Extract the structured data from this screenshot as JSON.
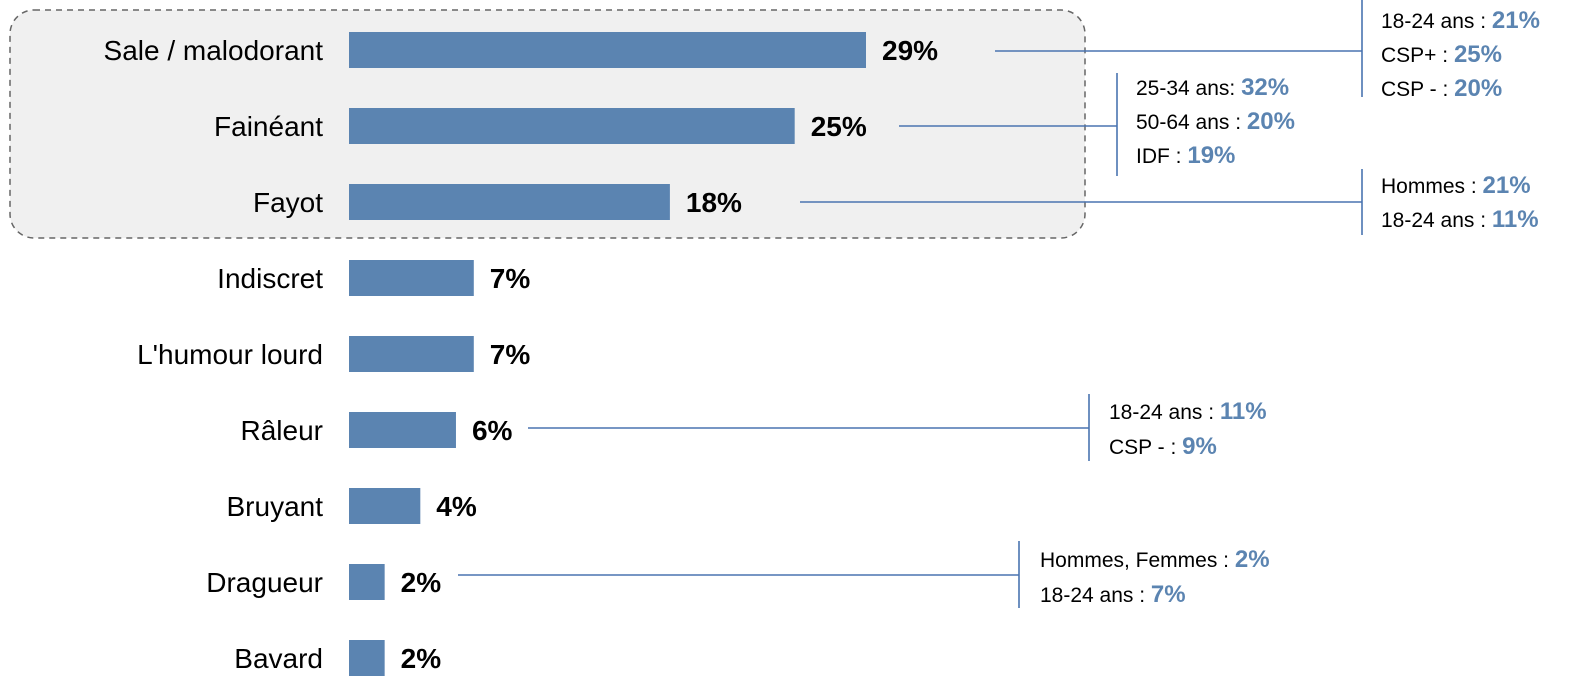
{
  "colors": {
    "bar": "#5b84b1",
    "annotation_value": "#5b84b1",
    "connector": "#4a74b0",
    "highlight_box": "#f0f0f0",
    "highlight_border": "#666666"
  },
  "chart_data": {
    "type": "bar",
    "orientation": "horizontal",
    "categories": [
      "Sale / malodorant",
      "Fainéant",
      "Fayot",
      "Indiscret",
      "L'humour lourd",
      "Râleur",
      "Bruyant",
      "Dragueur",
      "Bavard"
    ],
    "values": [
      29,
      25,
      18,
      7,
      7,
      6,
      4,
      2,
      2
    ],
    "value_labels": [
      "29%",
      "25%",
      "18%",
      "7%",
      "7%",
      "6%",
      "4%",
      "2%",
      "2%"
    ],
    "unit": "%",
    "xlim": [
      0,
      30
    ],
    "grid": false,
    "legend": "none",
    "highlighted_categories": [
      "Sale / malodorant",
      "Fainéant",
      "Fayot"
    ],
    "annotations": [
      {
        "category": "Sale / malodorant",
        "lines": [
          {
            "label": "18-24 ans : ",
            "value": "21%"
          },
          {
            "label": "CSP+ : ",
            "value": "25%"
          },
          {
            "label": "CSP - : ",
            "value": "20%"
          }
        ]
      },
      {
        "category": "Fainéant",
        "lines": [
          {
            "label": "25-34 ans: ",
            "value": "32%"
          },
          {
            "label": "50-64 ans : ",
            "value": "20%"
          },
          {
            "label": "IDF : ",
            "value": "19%"
          }
        ]
      },
      {
        "category": "Fayot",
        "lines": [
          {
            "label": "Hommes : ",
            "value": "21%"
          },
          {
            "label": "18-24 ans : ",
            "value": "11%"
          }
        ]
      },
      {
        "category": "Râleur",
        "lines": [
          {
            "label": "18-24 ans : ",
            "value": "11%"
          },
          {
            "label": "CSP - : ",
            "value": "9%"
          }
        ]
      },
      {
        "category": "Dragueur",
        "lines": [
          {
            "label": "Hommes, Femmes : ",
            "value": "2%"
          },
          {
            "label": "18-24 ans : ",
            "value": "7%"
          }
        ]
      }
    ]
  }
}
